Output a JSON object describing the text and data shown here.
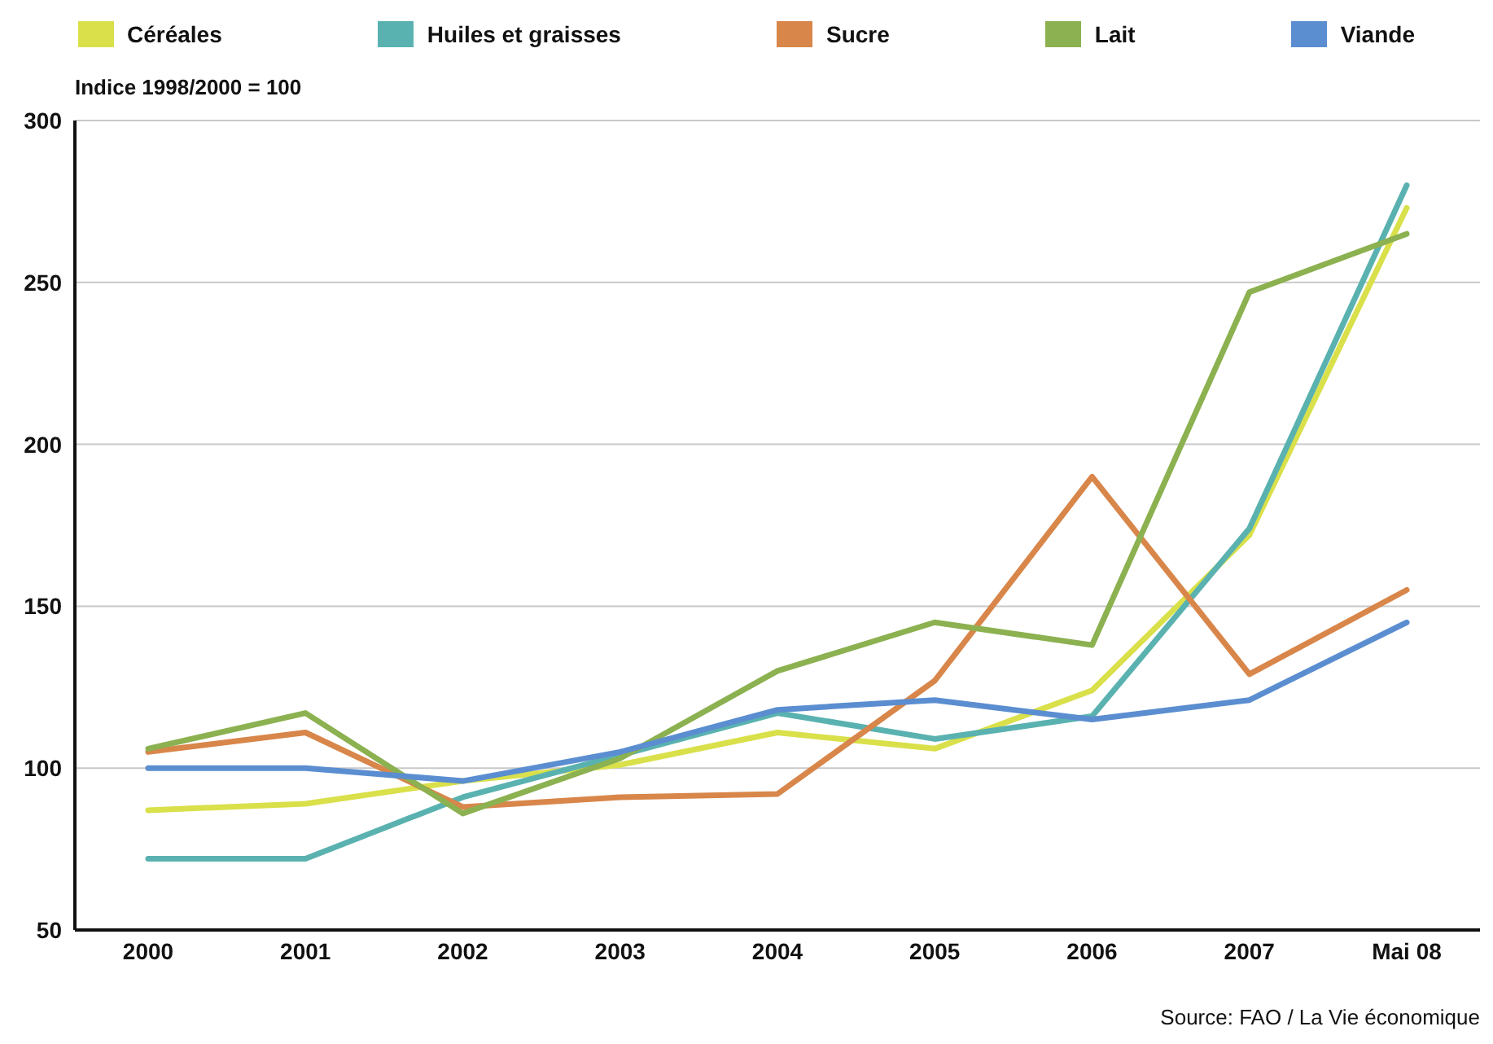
{
  "chart_data": {
    "type": "line",
    "ylabel": "Indice 1998/2000 = 100",
    "categories": [
      "2000",
      "2001",
      "2002",
      "2003",
      "2004",
      "2005",
      "2006",
      "2007",
      "Mai 08"
    ],
    "series": [
      {
        "name": "Céréales",
        "color": "#d9e04a",
        "values": [
          87,
          89,
          96,
          101,
          111,
          106,
          124,
          172,
          273
        ]
      },
      {
        "name": "Huiles et graisses",
        "color": "#5ab2b0",
        "values": [
          72,
          72,
          91,
          104,
          117,
          109,
          116,
          174,
          280
        ]
      },
      {
        "name": "Sucre",
        "color": "#d8864a",
        "values": [
          105,
          111,
          88,
          91,
          92,
          127,
          190,
          129,
          155
        ]
      },
      {
        "name": "Lait",
        "color": "#8cb150",
        "values": [
          106,
          117,
          86,
          103,
          130,
          145,
          138,
          247,
          265
        ]
      },
      {
        "name": "Viande",
        "color": "#5b8ed0",
        "values": [
          100,
          100,
          96,
          105,
          118,
          121,
          115,
          121,
          145
        ]
      }
    ],
    "ylim": [
      50,
      300
    ],
    "yticks": [
      50,
      100,
      150,
      200,
      250,
      300
    ],
    "grid": "y",
    "legend": "top",
    "marker": "none",
    "line_style": "solid",
    "annotations": [
      "Source: FAO / La Vie économique"
    ]
  }
}
